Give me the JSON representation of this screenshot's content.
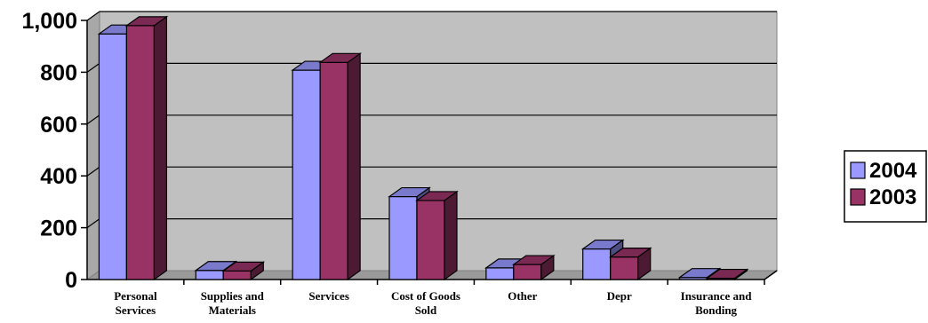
{
  "chart_data": {
    "type": "bar",
    "categories": [
      [
        "Personal",
        "Services"
      ],
      [
        "Supplies and",
        "Materials"
      ],
      [
        "Services"
      ],
      [
        "Cost of Goods",
        "Sold"
      ],
      [
        "Other"
      ],
      [
        "Depr"
      ],
      [
        "Insurance and",
        "Bonding"
      ]
    ],
    "series": [
      {
        "name": "2004",
        "values": [
          948,
          35,
          808,
          320,
          45,
          118,
          8
        ],
        "color": "#9999ff"
      },
      {
        "name": "2003",
        "values": [
          980,
          33,
          838,
          305,
          58,
          87,
          5
        ],
        "color": "#993366"
      }
    ],
    "ylim": [
      0,
      1000
    ],
    "yticks": [
      "0",
      "200",
      "400",
      "600",
      "800",
      "1,000"
    ],
    "grid": true,
    "three_d": true,
    "wall_color": "#c0c0c0",
    "legend_position": "right"
  }
}
